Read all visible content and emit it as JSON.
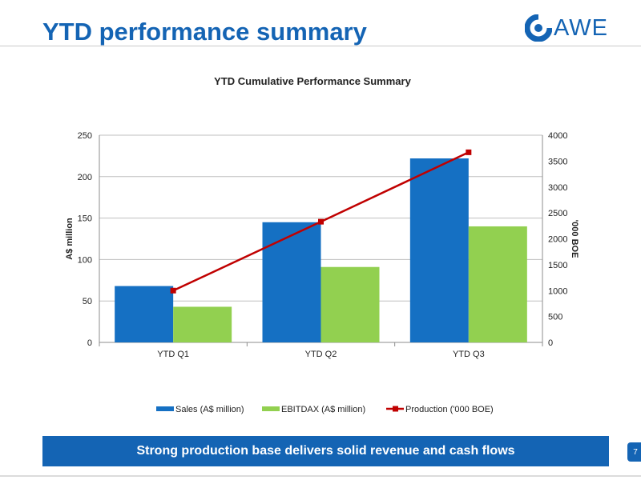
{
  "slide": {
    "title": "YTD performance summary",
    "banner_text": "Strong production base delivers solid revenue and cash flows",
    "page_number": "7"
  },
  "logo": {
    "text": "AWE",
    "icon": "awe-logo-icon",
    "color": "#1464B4"
  },
  "chart_data": {
    "type": "bar",
    "title": "YTD Cumulative Performance Summary",
    "categories": [
      "YTD Q1",
      "YTD Q2",
      "YTD Q3"
    ],
    "series": [
      {
        "name": "Sales (A$ million)",
        "type": "bar",
        "axis": "left",
        "color": "#1570C3",
        "values": [
          68,
          145,
          222
        ]
      },
      {
        "name": "EBITDAX (A$ million)",
        "type": "bar",
        "axis": "left",
        "color": "#92D050",
        "values": [
          43,
          91,
          140
        ]
      },
      {
        "name": "Production ('000 BOE)",
        "type": "line",
        "axis": "right",
        "color": "#C00000",
        "values": [
          1000,
          2330,
          3670
        ]
      }
    ],
    "ylabel": "A$ million",
    "ylabel_right": "'000 BOE",
    "ylim": [
      0,
      250
    ],
    "yticks": [
      0,
      50,
      100,
      150,
      200,
      250
    ],
    "ylim_right": [
      0,
      4000
    ],
    "yticks_right": [
      0,
      500,
      1000,
      1500,
      2000,
      2500,
      3000,
      3500,
      4000
    ],
    "grid": true,
    "legend_position": "bottom"
  }
}
